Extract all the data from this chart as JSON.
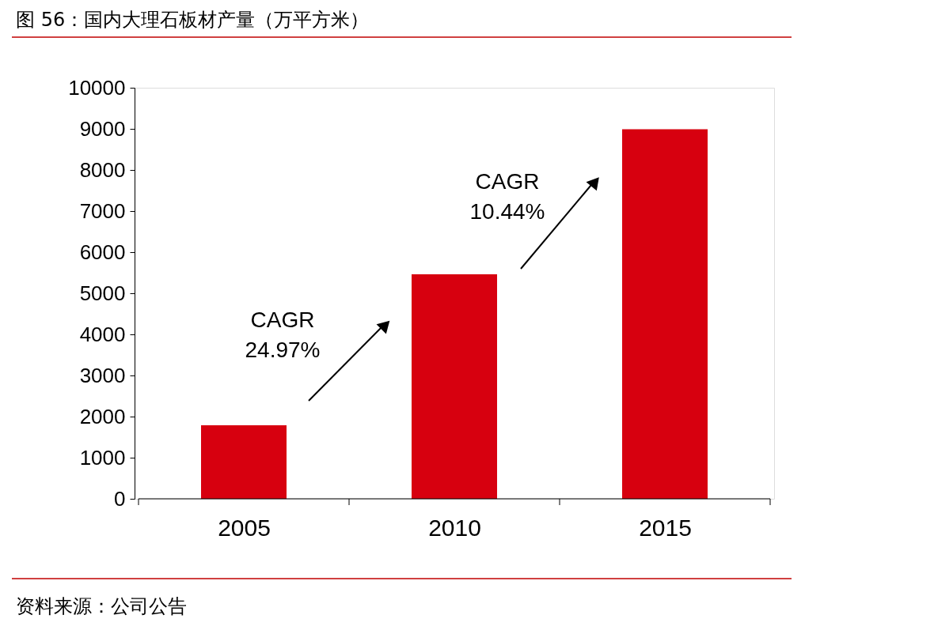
{
  "chart_data": {
    "type": "bar",
    "title": "图 56：国内大理石板材产量（万平方米）",
    "categories": [
      "2005",
      "2010",
      "2015"
    ],
    "values": [
      1790,
      5460,
      8990
    ],
    "color": "#d7000f",
    "ylim": [
      0,
      10000
    ],
    "yticks": [
      0,
      1000,
      2000,
      3000,
      4000,
      5000,
      6000,
      7000,
      8000,
      9000,
      10000
    ],
    "grid": false,
    "annotations": [
      "CAGR\n24.97%",
      "CAGR\n10.44%",
      "资料来源：公司公告"
    ]
  }
}
